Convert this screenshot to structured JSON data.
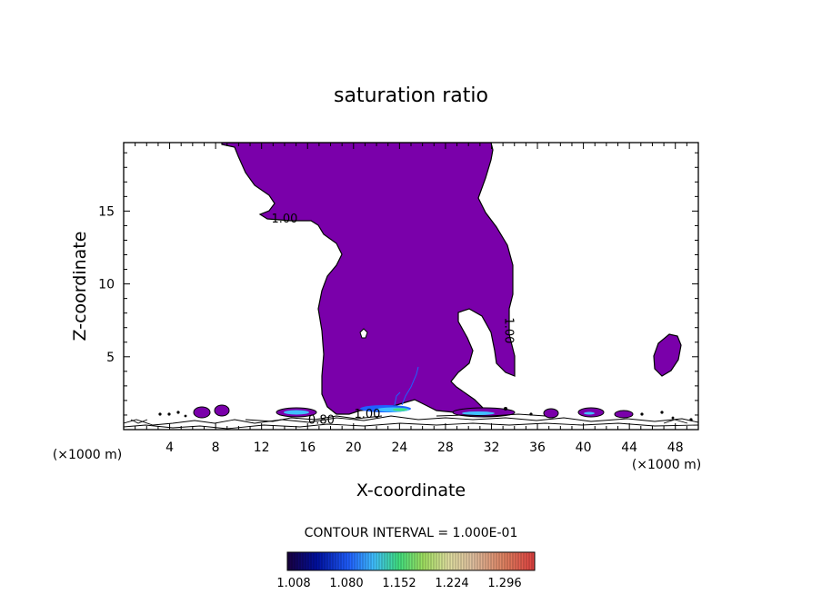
{
  "chart_data": {
    "type": "contour",
    "title": "saturation ratio",
    "xlabel": "X-coordinate",
    "ylabel": "Z-coordinate",
    "x_unit": "(×1000 m)",
    "y_unit": "(×1000 m)",
    "xlim": [
      0,
      50
    ],
    "ylim": [
      0,
      19.7
    ],
    "x_ticks": [
      4,
      8,
      12,
      16,
      20,
      24,
      28,
      32,
      36,
      40,
      44,
      48
    ],
    "y_ticks": [
      5,
      10,
      15
    ],
    "contour_interval_text": "CONTOUR INTERVAL = 1.000E-01",
    "contour_labels": [
      {
        "text": "1.00",
        "x": 14.0,
        "z": 14.2
      },
      {
        "text": "1.00",
        "x": 33.2,
        "z": 6.8
      },
      {
        "text": "0.80",
        "x": 17.2,
        "z": 0.4
      },
      {
        "text": "1.00",
        "x": 21.2,
        "z": 0.8
      }
    ],
    "colorbar": {
      "ticks": [
        "1.008",
        "1.080",
        "1.152",
        "1.224",
        "1.296"
      ],
      "colors": [
        "#1a0040",
        "#0010a0",
        "#2060ff",
        "#40c0ff",
        "#40e080",
        "#a0e060",
        "#e0e0a0",
        "#e0c0a0",
        "#e08060",
        "#e04040"
      ]
    },
    "fill_color": "#7a00aa"
  }
}
